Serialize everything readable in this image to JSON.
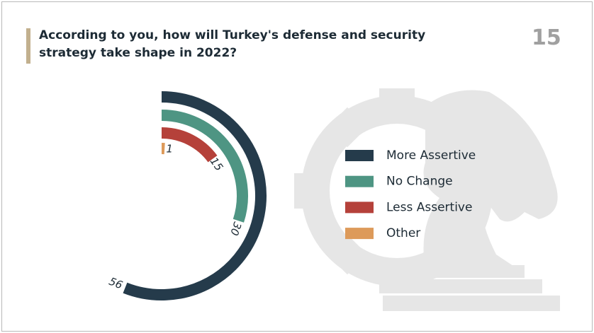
{
  "page_number": "15",
  "chart_data": {
    "type": "radial-bar",
    "title": "According to you, how will Turkey's defense and security strategy take shape in 2022?",
    "categories": [
      "More Assertive",
      "No Change",
      "Less Assertive",
      "Other"
    ],
    "values": [
      56,
      30,
      15,
      1
    ],
    "colors": [
      "#253b4b",
      "#4e9583",
      "#b5413a",
      "#dd9a5a"
    ],
    "rlim": [
      0,
      100
    ],
    "legend": "right"
  }
}
